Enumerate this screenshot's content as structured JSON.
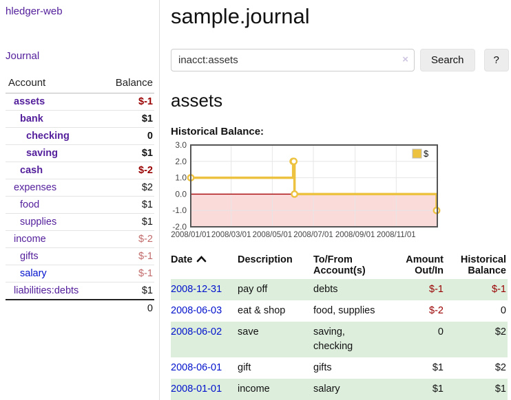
{
  "app": {
    "title": "hledger-web"
  },
  "colors": {
    "link_purple": "#54209c",
    "link_blue": "#0011cc",
    "negative_strong": "#990000",
    "negative_soft": "#c26b6b",
    "row_stripe_green": "#ddeedd",
    "chart_grid": "#e6e6e6",
    "chart_border": "#545454",
    "chart_label": "#444444"
  },
  "sidebar": {
    "nav_journal": "Journal",
    "headers": {
      "account": "Account",
      "balance": "Balance"
    },
    "accounts": [
      {
        "name": "assets",
        "indent": 0,
        "bold": true,
        "balance": "$-1",
        "balance_color": "strong-negative"
      },
      {
        "name": "bank",
        "indent": 1,
        "bold": true,
        "balance": "$1",
        "balance_color": "normal"
      },
      {
        "name": "checking",
        "indent": 2,
        "bold": true,
        "balance": "0",
        "balance_color": "normal"
      },
      {
        "name": "saving",
        "indent": 2,
        "bold": true,
        "balance": "$1",
        "balance_color": "normal"
      },
      {
        "name": "cash",
        "indent": 1,
        "bold": true,
        "balance": "$-2",
        "balance_color": "strong-negative"
      },
      {
        "name": "expenses",
        "indent": 0,
        "bold": false,
        "balance": "$2",
        "balance_color": "normal"
      },
      {
        "name": "food",
        "indent": 1,
        "bold": false,
        "balance": "$1",
        "balance_color": "normal"
      },
      {
        "name": "supplies",
        "indent": 1,
        "bold": false,
        "balance": "$1",
        "balance_color": "normal"
      },
      {
        "name": "income",
        "indent": 0,
        "bold": false,
        "balance": "$-2",
        "balance_color": "soft-negative"
      },
      {
        "name": "gifts",
        "indent": 1,
        "bold": false,
        "balance": "$-1",
        "balance_color": "soft-negative"
      },
      {
        "name": "salary",
        "indent": 1,
        "bold": false,
        "link_color": "blue",
        "balance": "$-1",
        "balance_color": "soft-negative"
      },
      {
        "name": "liabilities:debts",
        "indent": 0,
        "bold": false,
        "balance": "$1",
        "balance_color": "normal"
      }
    ],
    "total": "0"
  },
  "main": {
    "title": "sample.journal",
    "search": {
      "value": "inacct:assets",
      "clear_icon": "×",
      "button": "Search",
      "help": "?"
    },
    "account_heading": "assets"
  },
  "chart_data": {
    "type": "line",
    "title": "Historical Balance:",
    "step": true,
    "series": [
      {
        "name": "$",
        "color": "#edc240",
        "points": [
          {
            "date": "2008-01-01",
            "day": 0,
            "value": 1
          },
          {
            "date": "2008-06-01",
            "day": 152,
            "value": 2
          },
          {
            "date": "2008-06-02",
            "day": 153,
            "value": 2
          },
          {
            "date": "2008-06-03",
            "day": 154,
            "value": 0
          },
          {
            "date": "2008-12-31",
            "day": 365,
            "value": -1
          }
        ]
      }
    ],
    "x_ticks": [
      {
        "label": "2008/01/01",
        "day": 0
      },
      {
        "label": "2008/03/01",
        "day": 60
      },
      {
        "label": "2008/05/01",
        "day": 121
      },
      {
        "label": "2008/07/01",
        "day": 182
      },
      {
        "label": "2008/09/01",
        "day": 244
      },
      {
        "label": "2008/11/01",
        "day": 305
      }
    ],
    "y_ticks": [
      {
        "label": "3.0",
        "value": 3
      },
      {
        "label": "2.0",
        "value": 2
      },
      {
        "label": "1.0",
        "value": 1
      },
      {
        "label": "0.0",
        "value": 0
      },
      {
        "label": "-1.0",
        "value": -1
      },
      {
        "label": "-2.0",
        "value": -2
      }
    ],
    "ylim": [
      -2,
      3
    ],
    "x_total_days": 366,
    "grid": true,
    "legend": {
      "label": "$",
      "position": "top-right"
    },
    "negative_fill": "#fbdada",
    "zero_line_color": "#a40000"
  },
  "register": {
    "headers": {
      "date": "Date",
      "description": "Description",
      "accounts_l1": "To/From",
      "accounts_l2": "Account(s)",
      "amount_l1": "Amount",
      "amount_l2": "Out/In",
      "balance_l1": "Historical",
      "balance_l2": "Balance"
    },
    "rows": [
      {
        "date": "2008-12-31",
        "description": "pay off",
        "accounts": "debts",
        "amount": "$-1",
        "amount_negative": true,
        "balance": "$-1",
        "balance_negative": true,
        "striped": true
      },
      {
        "date": "2008-06-03",
        "description": "eat & shop",
        "accounts": "food, supplies",
        "amount": "$-2",
        "amount_negative": true,
        "balance": "0",
        "balance_negative": false,
        "striped": false
      },
      {
        "date": "2008-06-02",
        "description": "save",
        "accounts": "saving, checking",
        "amount": "0",
        "amount_negative": false,
        "balance": "$2",
        "balance_negative": false,
        "striped": true
      },
      {
        "date": "2008-06-01",
        "description": "gift",
        "accounts": "gifts",
        "amount": "$1",
        "amount_negative": false,
        "balance": "$2",
        "balance_negative": false,
        "striped": false
      },
      {
        "date": "2008-01-01",
        "description": "income",
        "accounts": "salary",
        "amount": "$1",
        "amount_negative": false,
        "balance": "$1",
        "balance_negative": false,
        "striped": true
      }
    ]
  }
}
